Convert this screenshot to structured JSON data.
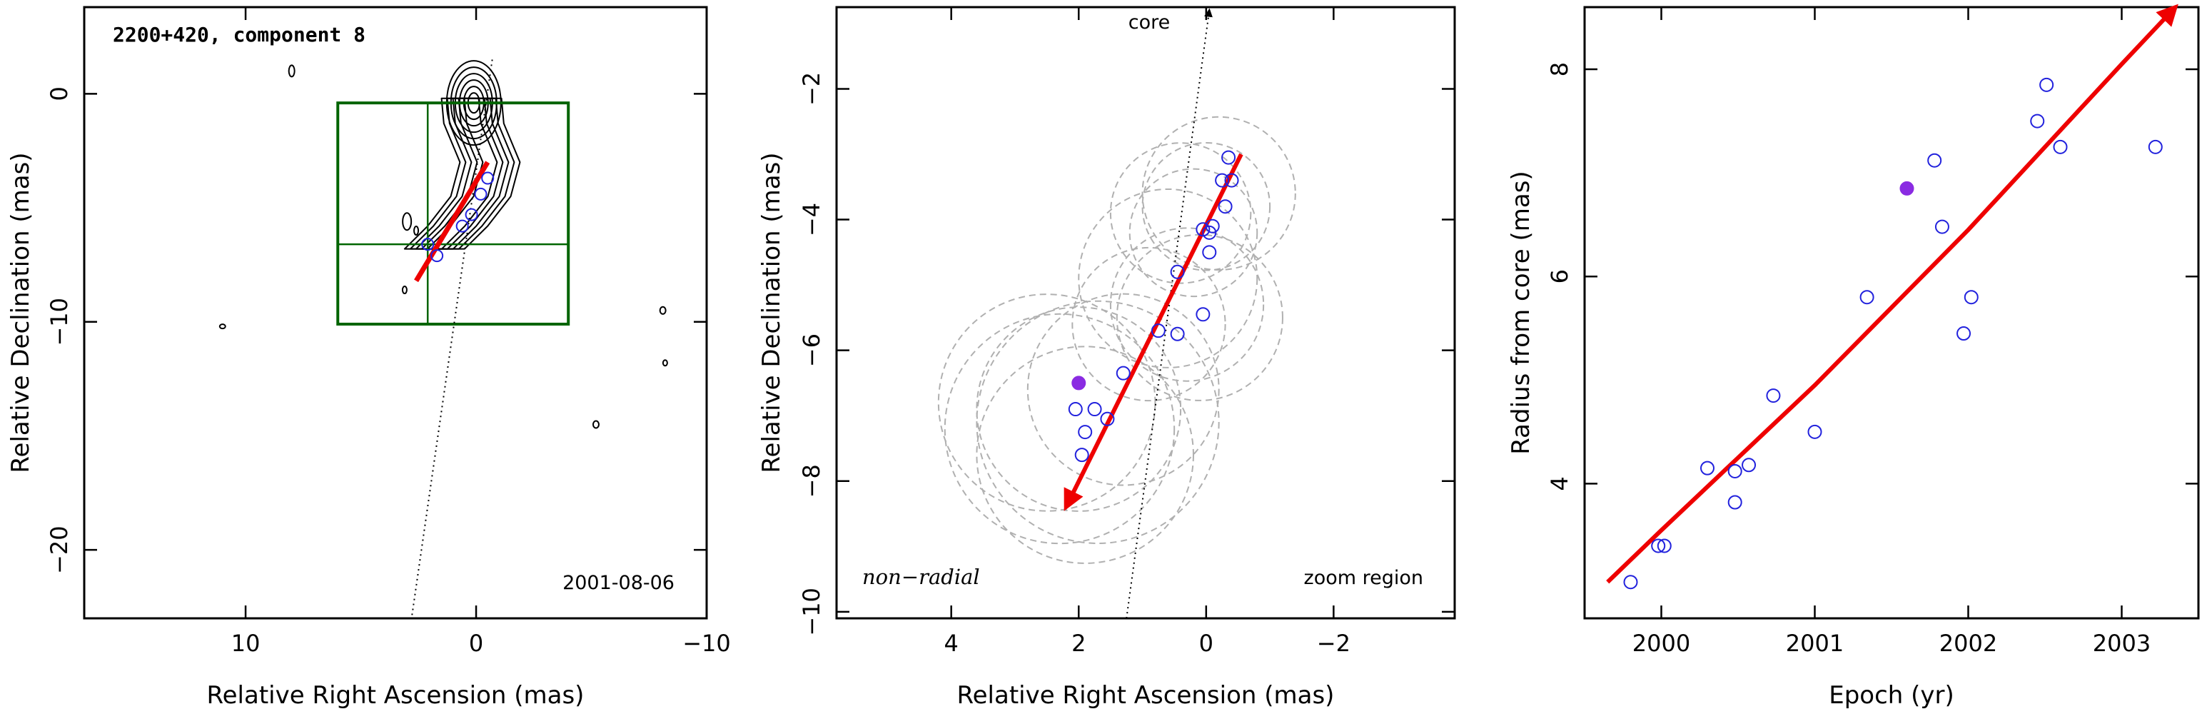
{
  "figure": {
    "panels": [
      {
        "id": "panel-left",
        "title": "2200+420, component 8",
        "date_label": "2001-08-06"
      },
      {
        "id": "panel-middle",
        "core_label": "core",
        "mode_label": "non−radial",
        "region_label": "zoom region"
      },
      {
        "id": "panel-right"
      }
    ]
  },
  "colors": {
    "arrow": "#ee0000",
    "points": "#2222dd",
    "highlight": "#8a2be2",
    "box": "#006400",
    "circles": "#b0b0b0"
  },
  "chart_data": [
    {
      "type": "scatter",
      "title": "2200+420, component 8",
      "xlabel": "Relative Right Ascension (mas)",
      "ylabel": "Relative Declination (mas)",
      "xlim": [
        17,
        -10
      ],
      "ylim": [
        -23,
        3.8
      ],
      "xticks": [
        10,
        0,
        -10
      ],
      "yticks": [
        0,
        -10,
        -20
      ],
      "xtick_labels": [
        "10",
        "0",
        "−10"
      ],
      "ytick_labels": [
        "0",
        "−10",
        "−20"
      ],
      "annotation": "2001-08-06",
      "zoom_box": {
        "x": [
          6,
          -4
        ],
        "y": [
          -0.4,
          -10.1
        ],
        "cross_x": 2.1,
        "cross_y": -6.6
      },
      "core_direction_line": {
        "x": [
          -0.7,
          2.8
        ],
        "y": [
          1.5,
          -23
        ]
      },
      "vector": {
        "start": [
          2.6,
          -8.2
        ],
        "end": [
          -0.5,
          -3.0
        ]
      },
      "points": [
        {
          "x": 2.1,
          "y": -6.6
        },
        {
          "x": 1.7,
          "y": -7.1
        },
        {
          "x": 0.6,
          "y": -5.8
        },
        {
          "x": 0.2,
          "y": -5.3
        },
        {
          "x": -0.2,
          "y": -4.4
        },
        {
          "x": -0.5,
          "y": -3.7
        }
      ]
    },
    {
      "type": "scatter",
      "xlabel": "Relative Right Ascension (mas)",
      "ylabel": "Relative Declination (mas)",
      "xlim": [
        5.8,
        -3.9
      ],
      "ylim": [
        -10.1,
        -0.75
      ],
      "xticks": [
        4,
        2,
        0,
        -2
      ],
      "yticks": [
        -2,
        -4,
        -6,
        -8,
        -10
      ],
      "xtick_labels": [
        "4",
        "2",
        "0",
        "−2"
      ],
      "ytick_labels": [
        "−2",
        "−4",
        "−6",
        "−8",
        "−10"
      ],
      "annotations": [
        "core",
        "non−radial",
        "zoom region"
      ],
      "core_direction_line": {
        "x": [
          -0.05,
          1.25
        ],
        "y": [
          -0.75,
          -10.1
        ]
      },
      "vector": {
        "start": [
          -0.55,
          -3.0
        ],
        "end": [
          2.2,
          -8.4
        ]
      },
      "points": [
        {
          "x": -0.35,
          "y": -3.05
        },
        {
          "x": -0.25,
          "y": -3.4
        },
        {
          "x": -0.4,
          "y": -3.4
        },
        {
          "x": -0.3,
          "y": -3.8
        },
        {
          "x": -0.1,
          "y": -4.1
        },
        {
          "x": 0.05,
          "y": -4.15
        },
        {
          "x": -0.05,
          "y": -4.2
        },
        {
          "x": -0.05,
          "y": -4.5
        },
        {
          "x": 0.45,
          "y": -4.8
        },
        {
          "x": 0.05,
          "y": -5.45
        },
        {
          "x": 0.75,
          "y": -5.7
        },
        {
          "x": 0.45,
          "y": -5.75
        },
        {
          "x": 1.3,
          "y": -6.35
        },
        {
          "x": 2.05,
          "y": -6.9
        },
        {
          "x": 1.75,
          "y": -6.9
        },
        {
          "x": 1.55,
          "y": -7.05
        },
        {
          "x": 1.9,
          "y": -7.25
        },
        {
          "x": 1.95,
          "y": -7.6
        }
      ],
      "highlight_point": {
        "x": 2.0,
        "y": -6.5
      },
      "circles": [
        {
          "x": 0.0,
          "y": -3.8,
          "r": 1.0
        },
        {
          "x": -0.2,
          "y": -3.6,
          "r": 1.2
        },
        {
          "x": 0.4,
          "y": -3.9,
          "r": 1.1
        },
        {
          "x": 0.2,
          "y": -4.2,
          "r": 1.0
        },
        {
          "x": 0.3,
          "y": -5.3,
          "r": 1.2
        },
        {
          "x": 0.1,
          "y": -5.5,
          "r": 1.3
        },
        {
          "x": 0.9,
          "y": -5.6,
          "r": 1.2
        },
        {
          "x": 0.6,
          "y": -4.9,
          "r": 1.4
        },
        {
          "x": 2.0,
          "y": -6.9,
          "r": 1.6
        },
        {
          "x": 1.7,
          "y": -7.1,
          "r": 1.9
        },
        {
          "x": 2.3,
          "y": -7.2,
          "r": 1.8
        },
        {
          "x": 1.3,
          "y": -6.6,
          "r": 1.5
        },
        {
          "x": 1.9,
          "y": -7.6,
          "r": 1.7
        },
        {
          "x": 2.5,
          "y": -6.8,
          "r": 1.7
        }
      ]
    },
    {
      "type": "scatter",
      "xlabel": "Epoch (yr)",
      "ylabel": "Radius from core (mas)",
      "xlim": [
        1999.5,
        2003.5
      ],
      "ylim": [
        2.7,
        8.6
      ],
      "xticks": [
        2000,
        2001,
        2002,
        2003
      ],
      "yticks": [
        4,
        6,
        8
      ],
      "xtick_labels": [
        "2000",
        "2001",
        "2002",
        "2003"
      ],
      "ytick_labels": [
        "4",
        "6",
        "8"
      ],
      "fit_curve": {
        "x": [
          1999.65,
          2000.0,
          2000.5,
          2001.0,
          2001.5,
          2002.0,
          2002.5,
          2003.0,
          2003.35
        ],
        "y": [
          3.05,
          3.55,
          4.25,
          4.95,
          5.7,
          6.45,
          7.25,
          8.05,
          8.6
        ]
      },
      "points": [
        {
          "x": 1999.8,
          "y": 3.05
        },
        {
          "x": 1999.98,
          "y": 3.4
        },
        {
          "x": 2000.02,
          "y": 3.4
        },
        {
          "x": 2000.3,
          "y": 4.15
        },
        {
          "x": 2000.48,
          "y": 4.12
        },
        {
          "x": 2000.48,
          "y": 3.82
        },
        {
          "x": 2000.57,
          "y": 4.18
        },
        {
          "x": 2000.73,
          "y": 4.85
        },
        {
          "x": 2001.0,
          "y": 4.5
        },
        {
          "x": 2001.34,
          "y": 5.8
        },
        {
          "x": 2001.78,
          "y": 7.12
        },
        {
          "x": 2001.83,
          "y": 6.48
        },
        {
          "x": 2001.97,
          "y": 5.45
        },
        {
          "x": 2002.02,
          "y": 5.8
        },
        {
          "x": 2002.45,
          "y": 7.5
        },
        {
          "x": 2002.51,
          "y": 7.85
        },
        {
          "x": 2002.6,
          "y": 7.25
        },
        {
          "x": 2003.22,
          "y": 7.25
        }
      ],
      "highlight_point": {
        "x": 2001.6,
        "y": 6.85
      }
    }
  ]
}
